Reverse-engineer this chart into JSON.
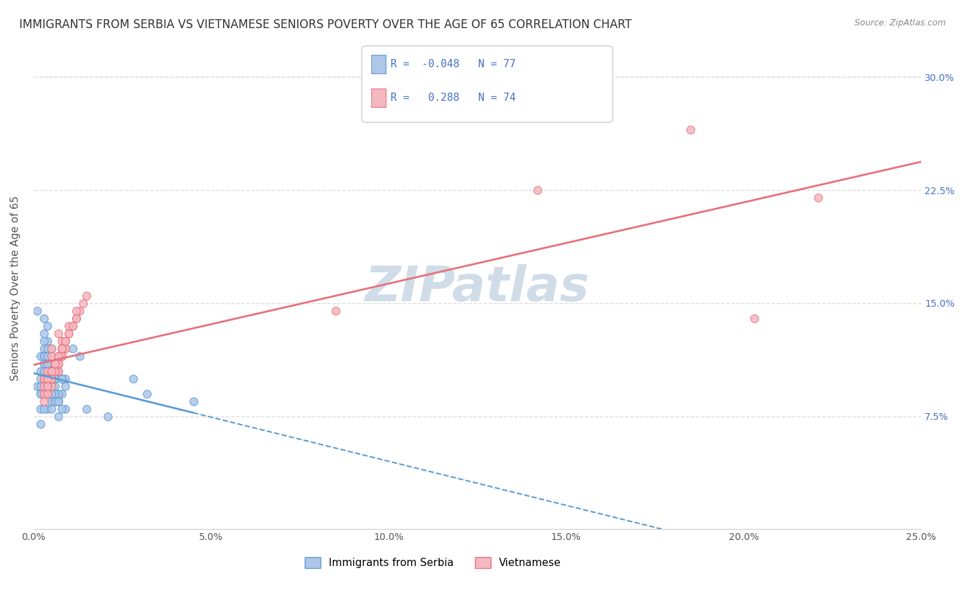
{
  "title": "IMMIGRANTS FROM SERBIA VS VIETNAMESE SENIORS POVERTY OVER THE AGE OF 65 CORRELATION CHART",
  "source": "Source: ZipAtlas.com",
  "xlabel_bottom": "",
  "ylabel": "Seniors Poverty Over the Age of 65",
  "x_tick_labels": [
    "0.0%",
    "5.0%",
    "10.0%",
    "15.0%",
    "20.0%",
    "25.0%"
  ],
  "x_tick_values": [
    0.0,
    5.0,
    10.0,
    15.0,
    20.0,
    25.0
  ],
  "y_tick_labels": [
    "7.5%",
    "15.0%",
    "22.5%",
    "30.0%"
  ],
  "y_tick_values": [
    7.5,
    15.0,
    22.5,
    30.0
  ],
  "xlim": [
    0.0,
    25.0
  ],
  "ylim": [
    0.0,
    32.0
  ],
  "series1_name": "Immigrants from Serbia",
  "series1_color": "#aec6e8",
  "series1_edge_color": "#5b9bd5",
  "series1_R": -0.048,
  "series1_N": 77,
  "series1_line_color": "#5b9bd5",
  "series2_name": "Vietnamese",
  "series2_color": "#f4b8c1",
  "series2_edge_color": "#e8707a",
  "series2_R": 0.288,
  "series2_N": 74,
  "series2_line_color": "#e8707a",
  "background_color": "#ffffff",
  "grid_color": "#dddddd",
  "watermark_text": "ZIPatlas",
  "watermark_color": "#d0dde8",
  "legend_R_color": "#4472c4",
  "legend_N_color": "#4472c4",
  "title_fontsize": 12,
  "axis_label_fontsize": 11,
  "tick_fontsize": 10,
  "marker_size": 70,
  "series1_x": [
    0.2,
    0.3,
    0.1,
    0.5,
    0.4,
    0.6,
    0.8,
    0.3,
    0.7,
    0.4,
    0.2,
    0.5,
    0.9,
    0.3,
    0.6,
    0.4,
    0.1,
    0.2,
    0.8,
    0.5,
    0.3,
    0.7,
    0.4,
    0.6,
    1.1,
    0.9,
    1.3,
    0.2,
    0.5,
    0.4,
    0.3,
    0.6,
    0.8,
    0.4,
    0.3,
    0.5,
    0.2,
    0.7,
    0.4,
    0.6,
    0.3,
    0.5,
    0.4,
    0.2,
    0.8,
    0.3,
    0.4,
    0.6,
    0.5,
    0.7,
    0.3,
    0.4,
    0.2,
    0.9,
    0.5,
    0.6,
    0.4,
    0.3,
    0.7,
    0.5,
    0.4,
    0.6,
    0.3,
    0.2,
    0.5,
    0.8,
    0.4,
    0.6,
    0.3,
    0.7,
    0.5,
    0.4,
    1.5,
    2.1,
    3.2,
    4.5,
    2.8
  ],
  "series1_y": [
    10.5,
    12.0,
    9.5,
    11.0,
    13.5,
    8.5,
    10.0,
    14.0,
    7.5,
    12.5,
    11.5,
    9.0,
    8.0,
    13.0,
    10.0,
    11.0,
    14.5,
    10.0,
    9.0,
    12.0,
    11.5,
    8.5,
    10.5,
    9.0,
    12.0,
    10.0,
    11.5,
    9.0,
    8.5,
    11.0,
    10.0,
    9.5,
    8.0,
    12.0,
    11.0,
    10.5,
    9.0,
    8.5,
    11.5,
    10.0,
    12.5,
    9.5,
    8.0,
    7.0,
    10.0,
    11.0,
    9.0,
    8.5,
    10.5,
    9.0,
    11.5,
    10.0,
    8.0,
    9.5,
    10.0,
    11.0,
    9.5,
    8.0,
    10.5,
    9.0,
    11.0,
    8.5,
    10.0,
    9.5,
    8.0,
    10.0,
    11.5,
    9.0,
    10.5,
    8.5,
    9.0,
    10.0,
    8.0,
    7.5,
    9.0,
    8.5,
    10.0
  ],
  "series2_x": [
    0.3,
    0.5,
    0.8,
    1.2,
    0.4,
    0.7,
    1.5,
    0.6,
    0.9,
    1.1,
    0.4,
    0.8,
    1.3,
    0.5,
    0.7,
    1.0,
    0.6,
    0.4,
    0.9,
    1.2,
    0.3,
    0.7,
    0.5,
    1.4,
    0.8,
    0.6,
    1.0,
    0.3,
    0.7,
    0.5,
    0.9,
    0.4,
    0.6,
    0.8,
    1.2,
    0.5,
    0.3,
    0.7,
    0.4,
    0.6,
    1.0,
    0.8,
    0.5,
    0.3,
    0.7,
    0.6,
    0.4,
    0.9,
    0.5,
    0.8,
    1.1,
    0.6,
    0.4,
    0.7,
    0.5,
    0.3,
    0.6,
    0.8,
    0.4,
    0.7,
    0.5,
    0.9,
    0.4,
    0.6,
    0.8,
    0.5,
    0.7,
    0.4,
    0.6,
    8.5,
    14.2,
    18.5,
    20.3,
    22.1
  ],
  "series2_y": [
    10.0,
    11.5,
    12.5,
    14.0,
    9.5,
    13.0,
    15.5,
    11.0,
    12.0,
    13.5,
    10.5,
    11.5,
    14.5,
    12.0,
    10.5,
    13.0,
    11.0,
    9.0,
    12.5,
    14.0,
    10.0,
    11.5,
    9.5,
    15.0,
    12.0,
    10.5,
    13.5,
    9.0,
    11.0,
    10.0,
    12.5,
    9.5,
    11.0,
    12.0,
    14.5,
    10.5,
    9.0,
    11.5,
    10.0,
    11.0,
    13.0,
    12.0,
    10.5,
    9.5,
    11.0,
    10.5,
    9.0,
    12.0,
    10.0,
    11.5,
    13.5,
    10.5,
    9.5,
    11.0,
    10.0,
    8.5,
    11.0,
    12.0,
    9.5,
    11.0,
    10.0,
    12.5,
    10.0,
    11.0,
    12.0,
    10.5,
    11.5,
    9.5,
    11.0,
    14.5,
    22.5,
    26.5,
    14.0,
    22.0
  ]
}
